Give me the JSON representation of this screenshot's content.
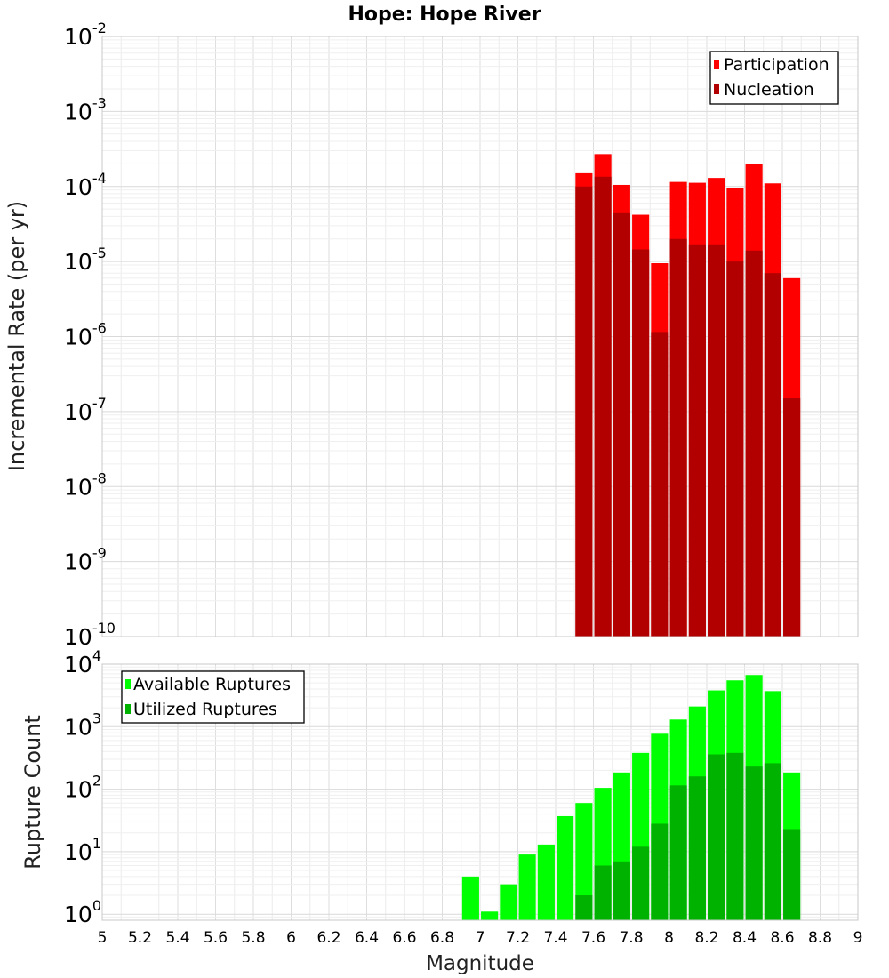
{
  "chart_data": [
    {
      "type": "bar",
      "title": "Hope: Hope River",
      "xlabel": "",
      "ylabel": "Incremental Rate (per yr)",
      "yscale": "log",
      "xlim": [
        5,
        9
      ],
      "ylim": [
        1e-10,
        0.01
      ],
      "ytick_exponents": [
        "-10",
        "-9",
        "-8",
        "-7",
        "-6",
        "-5",
        "-4",
        "-3",
        "-2"
      ],
      "ytick_base": "10",
      "legend_position": "top-right",
      "grid": true,
      "x": [
        7.55,
        7.65,
        7.75,
        7.85,
        7.95,
        8.05,
        8.15,
        8.25,
        8.35,
        8.45,
        8.55,
        8.65
      ],
      "series": [
        {
          "name": "Participation",
          "color": "#ff0000",
          "values": [
            0.00015,
            0.00027,
            0.000105,
            4.2e-05,
            9.5e-06,
            0.000115,
            0.000112,
            0.00013,
            9.5e-05,
            0.0002,
            0.00011,
            6e-06
          ]
        },
        {
          "name": "Nucleation",
          "color": "#b20000",
          "values": [
            0.0001,
            0.000135,
            4.4e-05,
            1.45e-05,
            1.15e-06,
            2e-05,
            1.65e-05,
            1.65e-05,
            1e-05,
            1.4e-05,
            7e-06,
            1.5e-07
          ]
        }
      ]
    },
    {
      "type": "bar",
      "xlabel": "Magnitude",
      "ylabel": "Rupture Count",
      "yscale": "log",
      "xlim": [
        5,
        9
      ],
      "ylim": [
        0.8,
        10000
      ],
      "ytick_exponents": [
        "0",
        "1",
        "2",
        "3",
        "4"
      ],
      "ytick_base": "10",
      "xticks": [
        "5",
        "5.2",
        "5.4",
        "5.6",
        "5.8",
        "6",
        "6.2",
        "6.4",
        "6.6",
        "6.8",
        "7",
        "7.2",
        "7.4",
        "7.6",
        "7.8",
        "8",
        "8.2",
        "8.4",
        "8.6",
        "8.8",
        "9"
      ],
      "legend_position": "top-left",
      "grid": true,
      "x": [
        6.95,
        7.05,
        7.15,
        7.25,
        7.35,
        7.45,
        7.55,
        7.65,
        7.75,
        7.85,
        7.95,
        8.05,
        8.15,
        8.25,
        8.35,
        8.45,
        8.55,
        8.65
      ],
      "series": [
        {
          "name": "Available Ruptures",
          "color": "#00ff00",
          "values": [
            4,
            1.1,
            3,
            9,
            13,
            37,
            60,
            105,
            185,
            380,
            770,
            1300,
            2100,
            3800,
            5500,
            6700,
            3700,
            185
          ]
        },
        {
          "name": "Utilized Ruptures",
          "color": "#00b200",
          "values": [
            0,
            0,
            0,
            0,
            0,
            0,
            2,
            6,
            7,
            12,
            28,
            115,
            160,
            360,
            380,
            230,
            260,
            23
          ]
        }
      ]
    }
  ]
}
